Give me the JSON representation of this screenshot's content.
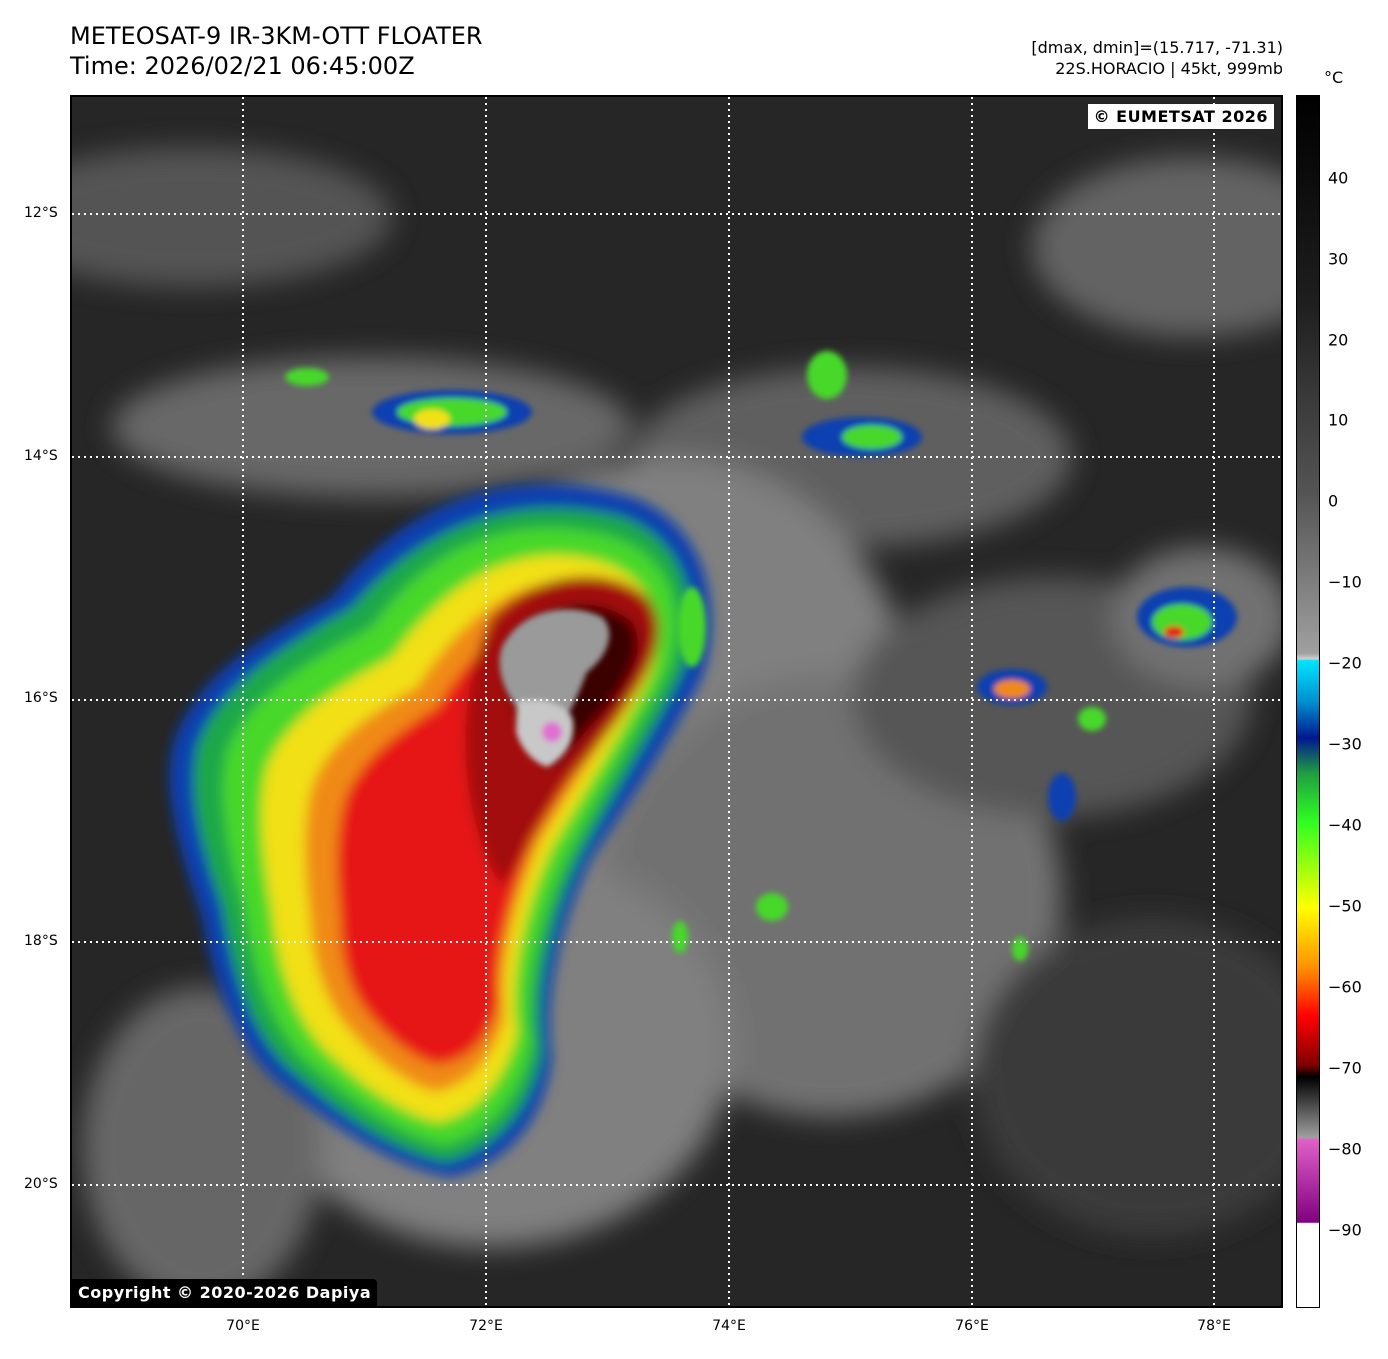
{
  "header": {
    "title": "METEOSAT-9 IR-3KM-OTT FLOATER",
    "time": "Time: 2026/02/21 06:45:00Z",
    "dmax_dmin": "[dmax, dmin]=(15.717, -71.31)",
    "storm": "22S.HORACIO | 45kt, 999mb"
  },
  "map": {
    "copyright_top": "© EUMETSAT 2026",
    "copyright_bottom": "Copyright © 2020-2026 Dapiya",
    "lat_labels": [
      "12°S",
      "14°S",
      "16°S",
      "18°S",
      "20°S"
    ],
    "lon_labels": [
      "70°E",
      "72°E",
      "74°E",
      "76°E",
      "78°E"
    ]
  },
  "colorbar": {
    "unit": "°C",
    "ticks": [
      "40",
      "30",
      "20",
      "10",
      "0",
      "−10",
      "−20",
      "−30",
      "−40",
      "−50",
      "−60",
      "−70",
      "−80",
      "−90"
    ]
  }
}
